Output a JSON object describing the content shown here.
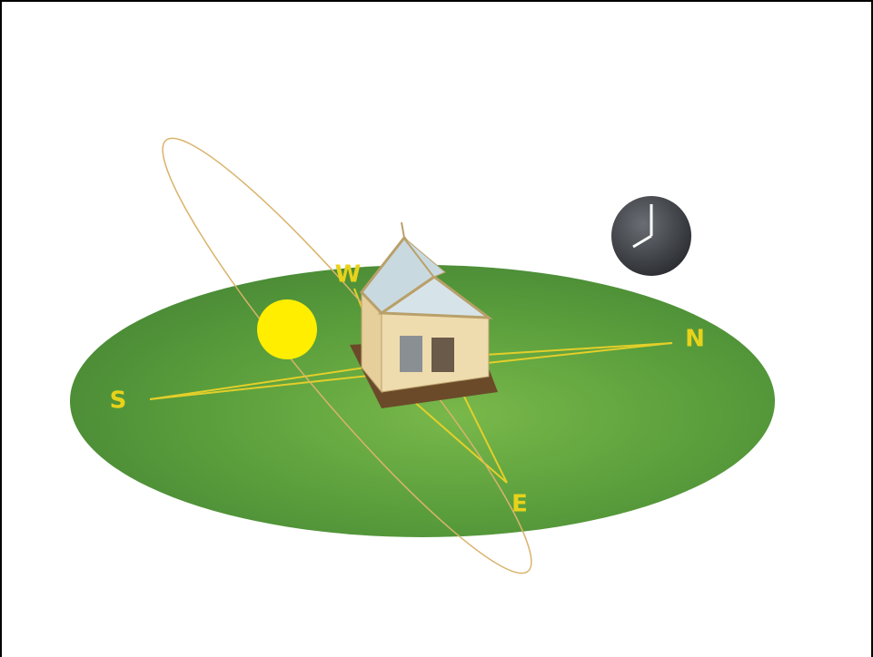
{
  "compass": {
    "south": "S",
    "north": "N",
    "east": "E",
    "west": "W"
  }
}
